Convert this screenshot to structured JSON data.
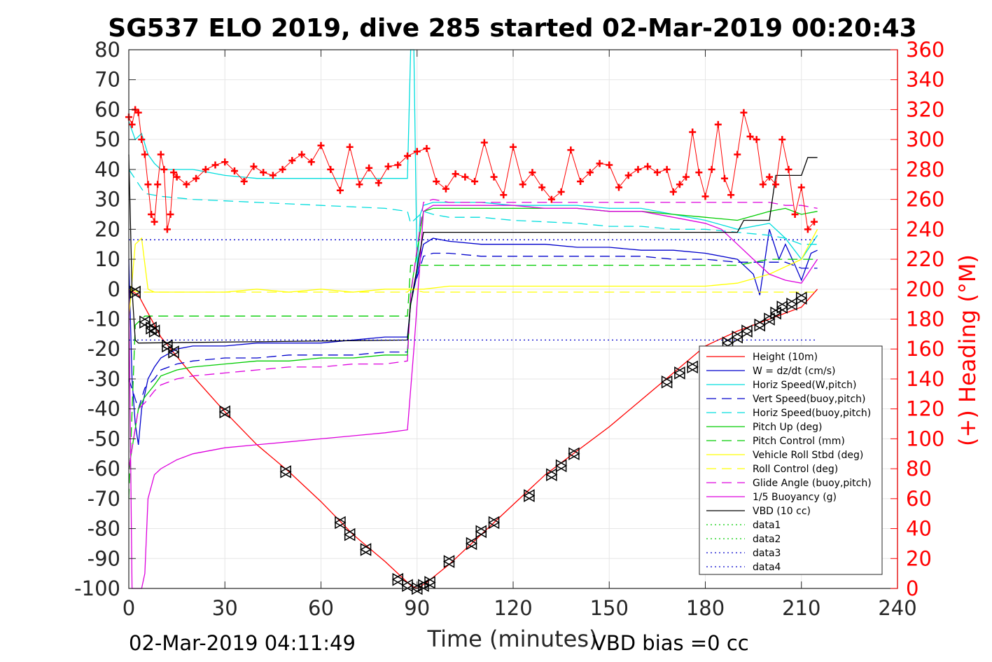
{
  "chart_data": {
    "type": "line",
    "title": "SG537 ELO 2019, dive 285 started 02-Mar-2019 00:20:43",
    "xlabel": "Time (minutes)",
    "ylabel": "",
    "y2label": "(+) Heading (°M)",
    "xlim": [
      0,
      240
    ],
    "ylim": [
      -100,
      80
    ],
    "y2lim": [
      0,
      360
    ],
    "grid": true,
    "legend_position": "bottom-right",
    "footer_left": "02-Mar-2019 04:11:49",
    "footer_right": "VBD bias =0 cc",
    "x_ticks": [
      "0",
      "30",
      "60",
      "90",
      "120",
      "150",
      "180",
      "210",
      "240"
    ],
    "y_ticks": [
      "80",
      "70",
      "60",
      "50",
      "40",
      "30",
      "20",
      "10",
      "0",
      "-10",
      "-20",
      "-30",
      "-40",
      "-50",
      "-60",
      "-70",
      "-80",
      "-90",
      "-100"
    ],
    "y2_ticks": [
      "360",
      "340",
      "320",
      "300",
      "280",
      "260",
      "240",
      "220",
      "200",
      "180",
      "160",
      "140",
      "120",
      "100",
      "80",
      "60",
      "40",
      "20",
      "0"
    ],
    "series": [
      {
        "name": "Height (10m)",
        "color": "#ff0000",
        "dash": "",
        "x": [
          0,
          3,
          10,
          20,
          30,
          40,
          50,
          60,
          70,
          80,
          85,
          88,
          90,
          93,
          100,
          110,
          120,
          130,
          140,
          150,
          160,
          170,
          180,
          190,
          200,
          210,
          215
        ],
        "y": [
          0,
          -2,
          -16,
          -29,
          -41,
          -52,
          -61,
          -71,
          -82,
          -91,
          -96,
          -99,
          -100,
          -98,
          -92,
          -82,
          -72,
          -62,
          -54,
          -46,
          -37,
          -28,
          -19,
          -14,
          -10,
          -6,
          0
        ]
      },
      {
        "name": "W = dz/dt (cm/s)",
        "color": "#0000cc",
        "dash": "",
        "x": [
          0,
          1,
          2,
          3,
          4,
          5,
          6,
          8,
          10,
          15,
          20,
          30,
          40,
          50,
          60,
          70,
          80,
          87,
          88,
          90,
          92,
          95,
          100,
          110,
          120,
          130,
          140,
          150,
          160,
          170,
          180,
          190,
          195,
          197,
          200,
          203,
          205,
          208,
          210,
          213,
          215
        ],
        "y": [
          10,
          -30,
          -45,
          -52,
          -40,
          -35,
          -30,
          -26,
          -23,
          -20,
          -19,
          -19,
          -18,
          -18,
          -18,
          -17,
          -16,
          -16,
          -5,
          5,
          15,
          17,
          16,
          15,
          15,
          15,
          14,
          14,
          13,
          13,
          12,
          10,
          5,
          -2,
          20,
          10,
          15,
          8,
          3,
          12,
          13
        ]
      },
      {
        "name": "Horiz Speed(W,pitch)",
        "color": "#00dddd",
        "dash": "",
        "x": [
          0,
          2,
          4,
          6,
          8,
          10,
          15,
          20,
          30,
          40,
          50,
          60,
          70,
          80,
          87,
          88,
          89,
          90,
          91,
          92,
          95,
          100,
          110,
          120,
          130,
          140,
          150,
          160,
          170,
          180,
          190,
          200,
          205,
          210,
          215
        ],
        "y": [
          56,
          50,
          52,
          45,
          42,
          40,
          40,
          40,
          38,
          37,
          37,
          37,
          37,
          37,
          37,
          80,
          80,
          5,
          25,
          28,
          29,
          29,
          29,
          28,
          28,
          28,
          27,
          27,
          25,
          23,
          20,
          22,
          17,
          10,
          18
        ]
      },
      {
        "name": "Vert Speed(buoy,pitch)",
        "color": "#0000cc",
        "dash": "14,8",
        "x": [
          0,
          3,
          5,
          8,
          10,
          15,
          20,
          30,
          40,
          50,
          60,
          70,
          80,
          87,
          88,
          92,
          95,
          100,
          110,
          120,
          130,
          140,
          150,
          160,
          170,
          180,
          190,
          200,
          205,
          210,
          215
        ],
        "y": [
          -30,
          -40,
          -33,
          -30,
          -27,
          -25,
          -24,
          -23,
          -23,
          -22,
          -22,
          -22,
          -21,
          -21,
          -3,
          11,
          12,
          12,
          11,
          11,
          11,
          11,
          11,
          11,
          10,
          10,
          9,
          9,
          9,
          7,
          7
        ]
      },
      {
        "name": "Horiz Speed(buoy,pitch)",
        "color": "#00dddd",
        "dash": "14,8",
        "x": [
          0,
          5,
          10,
          20,
          30,
          40,
          50,
          60,
          70,
          80,
          87,
          88,
          92,
          95,
          100,
          110,
          120,
          130,
          140,
          150,
          160,
          170,
          180,
          190,
          200,
          205,
          210,
          215
        ],
        "y": [
          40,
          32,
          31,
          30,
          29.5,
          29,
          28.5,
          28,
          27.5,
          27,
          26,
          22,
          26,
          25,
          24,
          24,
          23,
          22.5,
          22,
          21,
          21,
          20,
          20,
          19,
          18,
          17,
          15,
          15
        ]
      },
      {
        "name": "Pitch Up (deg)",
        "color": "#00cc00",
        "dash": "",
        "x": [
          0,
          3,
          5,
          8,
          10,
          15,
          20,
          30,
          40,
          50,
          60,
          70,
          80,
          87,
          88,
          92,
          95,
          100,
          110,
          120,
          130,
          140,
          150,
          160,
          170,
          180,
          190,
          200,
          205,
          210,
          215
        ],
        "y": [
          -60,
          -40,
          -36,
          -32,
          -29,
          -27,
          -26,
          -25,
          -24,
          -24,
          -23,
          -23,
          -22,
          -22,
          -1,
          26,
          27,
          27,
          27,
          27,
          27,
          27,
          26,
          26,
          25,
          24,
          23,
          26,
          27,
          25,
          26
        ]
      },
      {
        "name": "Pitch Control (mm)",
        "color": "#00cc00",
        "dash": "14,8",
        "x": [
          0,
          2,
          5,
          10,
          20,
          30,
          40,
          50,
          60,
          70,
          80,
          87,
          88,
          95,
          100,
          110,
          120,
          130,
          140,
          150,
          160,
          170,
          180,
          190,
          200,
          205,
          210,
          215
        ],
        "y": [
          -70,
          -12,
          -9,
          -9,
          -9,
          -9,
          -9,
          -9,
          -9,
          -9,
          -9,
          -9,
          8,
          8,
          8,
          8,
          8,
          8,
          8,
          8,
          8,
          8,
          8,
          8,
          10,
          10,
          10,
          10
        ]
      },
      {
        "name": "Vehicle Roll Stbd (deg)",
        "color": "#ffff00",
        "dash": "",
        "x": [
          0,
          2,
          4,
          6,
          8,
          10,
          20,
          30,
          40,
          50,
          60,
          70,
          80,
          87,
          88,
          92,
          100,
          110,
          120,
          130,
          140,
          150,
          160,
          170,
          180,
          190,
          200,
          210,
          215
        ],
        "y": [
          -10,
          15,
          17,
          0,
          -1,
          -1,
          -1,
          -1,
          0,
          -1,
          0,
          -1,
          0,
          0,
          0,
          0,
          1,
          1,
          1,
          1,
          1,
          1,
          1,
          1,
          1,
          2,
          5,
          10,
          20
        ]
      },
      {
        "name": "Roll Control (deg)",
        "color": "#ffff00",
        "dash": "14,8",
        "x": [
          0,
          3,
          10,
          20,
          30,
          40,
          50,
          60,
          70,
          80,
          87,
          88,
          92,
          100,
          110,
          120,
          130,
          140,
          150,
          160,
          170,
          180,
          190,
          200,
          210,
          215
        ],
        "y": [
          0,
          -1,
          -1,
          -1,
          -1,
          -1,
          -1,
          -1,
          -1,
          -1,
          -1,
          0,
          -1,
          -1,
          -1,
          -1,
          -1,
          -1,
          -1,
          -1,
          -1,
          -1,
          -1,
          -1,
          -1,
          -1
        ]
      },
      {
        "name": "Glide Angle (buoy,pitch)",
        "color": "#dd00dd",
        "dash": "14,8",
        "x": [
          0,
          3,
          5,
          8,
          10,
          15,
          20,
          30,
          40,
          50,
          60,
          70,
          80,
          87,
          88,
          92,
          95,
          100,
          110,
          120,
          130,
          140,
          150,
          160,
          170,
          180,
          190,
          200,
          205,
          210,
          215
        ],
        "y": [
          -60,
          -40,
          -38,
          -34,
          -32,
          -30,
          -29,
          -28,
          -27,
          -26,
          -26,
          -25,
          -25,
          -24,
          -2,
          29,
          30,
          29,
          29,
          29,
          29,
          29,
          29,
          29,
          29,
          29,
          29,
          29,
          28,
          28,
          27
        ]
      },
      {
        "name": "1/5 Buoyancy (g)",
        "color": "#dd00dd",
        "dash": "",
        "x": [
          0,
          1,
          2,
          3,
          4,
          5,
          6,
          8,
          10,
          15,
          20,
          30,
          40,
          50,
          60,
          70,
          80,
          87,
          89,
          91,
          92,
          95,
          100,
          110,
          120,
          130,
          140,
          150,
          160,
          170,
          180,
          185,
          190,
          195,
          200,
          205,
          210,
          215
        ],
        "y": [
          0,
          -100,
          -100,
          -100,
          -100,
          -95,
          -70,
          -62,
          -60,
          -57,
          -55,
          -53,
          -52,
          -51,
          -50,
          -49,
          -48,
          -47,
          -20,
          10,
          26,
          28,
          28,
          28,
          28,
          27,
          27,
          26,
          26,
          24,
          22,
          20,
          15,
          10,
          5,
          3,
          2,
          10
        ]
      },
      {
        "name": "VBD (10 cc)",
        "color": "#000000",
        "dash": "",
        "x": [
          0,
          1,
          2,
          3,
          87,
          88,
          92,
          93,
          180,
          190,
          192,
          200,
          202,
          210,
          212,
          215
        ],
        "y": [
          45,
          0,
          -17,
          -18,
          -17,
          -5,
          19,
          19,
          19,
          19,
          23,
          23,
          38,
          38,
          44,
          44
        ]
      },
      {
        "name": "data1",
        "color": "#00cc00",
        "dash": "2,4",
        "x": [],
        "y": []
      },
      {
        "name": "data2",
        "color": "#00cc00",
        "dash": "2,4",
        "x": [],
        "y": []
      },
      {
        "name": "data3",
        "color": "#0000cc",
        "dash": "2,4",
        "x": [
          0,
          215
        ],
        "y": [
          16.5,
          16.5
        ]
      },
      {
        "name": "data4",
        "color": "#0000cc",
        "dash": "2,4",
        "x": [
          0,
          215
        ],
        "y": [
          -17,
          -17
        ]
      }
    ],
    "heading_series": {
      "color": "#ff0000",
      "marker": "+",
      "axis": "right",
      "x": [
        0,
        1,
        2,
        3,
        4,
        5,
        6,
        7,
        8,
        9,
        10,
        11,
        12,
        13,
        14,
        15,
        18,
        21,
        24,
        27,
        30,
        33,
        36,
        39,
        42,
        45,
        48,
        51,
        54,
        57,
        60,
        63,
        66,
        69,
        72,
        75,
        78,
        81,
        84,
        87,
        90,
        93,
        96,
        99,
        102,
        105,
        108,
        111,
        114,
        117,
        120,
        123,
        126,
        129,
        132,
        135,
        138,
        141,
        144,
        147,
        150,
        153,
        156,
        159,
        162,
        165,
        168,
        170,
        172,
        174,
        176,
        178,
        180,
        182,
        184,
        186,
        188,
        190,
        192,
        194,
        196,
        198,
        200,
        202,
        204,
        206,
        208,
        210,
        212,
        214
      ],
      "y": [
        315,
        310,
        320,
        318,
        300,
        290,
        270,
        250,
        245,
        270,
        290,
        280,
        240,
        250,
        278,
        275,
        270,
        274,
        280,
        283,
        285,
        279,
        272,
        282,
        278,
        276,
        280,
        286,
        290,
        285,
        296,
        280,
        266,
        295,
        270,
        281,
        271,
        282,
        283,
        289,
        292,
        294,
        272,
        267,
        277,
        275,
        272,
        298,
        275,
        263,
        295,
        270,
        278,
        268,
        260,
        265,
        293,
        272,
        278,
        284,
        283,
        268,
        276,
        280,
        282,
        278,
        280,
        265,
        270,
        275,
        305,
        278,
        262,
        280,
        310,
        274,
        263,
        290,
        318,
        302,
        300,
        270,
        275,
        270,
        300,
        280,
        250,
        268,
        240,
        245
      ]
    },
    "marker_series": {
      "name": "dive-point markers",
      "color": "#000000",
      "marker": "hourglass",
      "x": [
        2,
        5,
        7,
        8,
        12,
        14,
        30,
        49,
        66,
        69,
        74,
        84,
        87,
        90,
        92,
        94,
        100,
        107,
        110,
        114,
        125,
        132,
        135,
        139,
        168,
        172,
        176,
        184,
        187,
        190,
        193,
        197,
        200,
        202,
        204,
        207,
        210
      ],
      "y": [
        -1,
        -11,
        -13,
        -14,
        -19,
        -21,
        -41,
        -61,
        -78,
        -82,
        -87,
        -97,
        -99,
        -100,
        -99,
        -98,
        -91,
        -85,
        -81,
        -78,
        -69,
        -62,
        -59,
        -55,
        -31,
        -28,
        -26,
        -21,
        -18,
        -16,
        -14,
        -12,
        -10,
        -8,
        -6,
        -5,
        -3
      ]
    }
  }
}
